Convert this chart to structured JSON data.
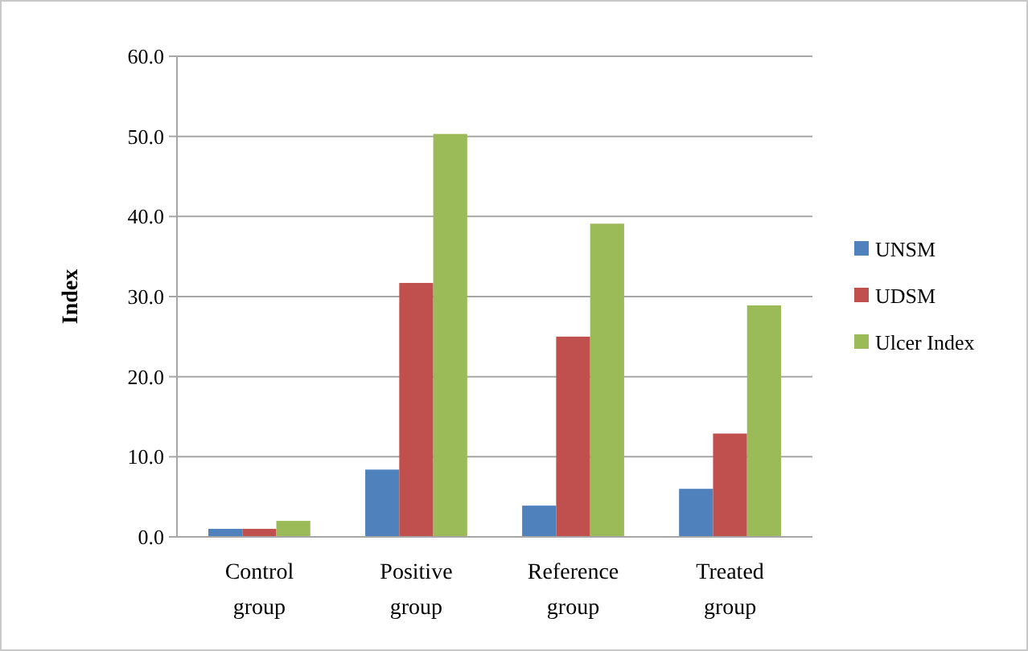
{
  "chart_data": {
    "type": "bar",
    "ylabel": "Index",
    "categories": [
      "Control group",
      "Positive group",
      "Reference group",
      "Treated group"
    ],
    "series": [
      {
        "name": "UNSM",
        "color": "#4f81bd",
        "values": [
          1.0,
          8.4,
          3.9,
          6.0
        ]
      },
      {
        "name": "UDSM",
        "color": "#c0504d",
        "values": [
          1.0,
          31.7,
          25.0,
          12.9
        ]
      },
      {
        "name": "Ulcer Index",
        "color": "#9bbb59",
        "values": [
          2.0,
          50.3,
          39.1,
          28.9
        ]
      }
    ],
    "ylim": [
      0,
      60
    ],
    "yticks": [
      {
        "value": 0,
        "label": "0.0"
      },
      {
        "value": 10,
        "label": "10.0"
      },
      {
        "value": 20,
        "label": "20.0"
      },
      {
        "value": 30,
        "label": "30.0"
      },
      {
        "value": 40,
        "label": "40.0"
      },
      {
        "value": 50,
        "label": "50.0"
      },
      {
        "value": 60,
        "label": "60.0"
      }
    ],
    "grid": "y",
    "legend": "right"
  }
}
